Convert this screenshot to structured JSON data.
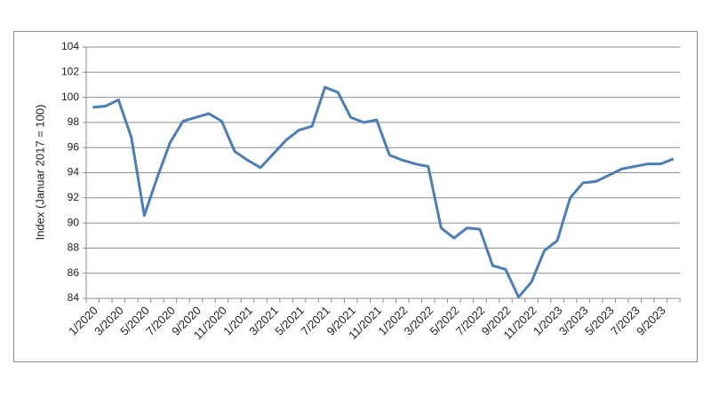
{
  "chart_data": {
    "type": "line",
    "y_label": "Index (Januar 2017 = 100)",
    "categories": [
      "1/2020",
      null,
      "3/2020",
      null,
      "5/2020",
      null,
      "7/2020",
      null,
      "9/2020",
      null,
      "11/2020",
      null,
      "1/2021",
      null,
      "3/2021",
      null,
      "5/2021",
      null,
      "7/2021",
      null,
      "9/2021",
      null,
      "11/2021",
      null,
      "1/2022",
      null,
      "3/2022",
      null,
      "5/2022",
      null,
      "7/2022",
      null,
      "9/2022",
      null,
      "11/2022",
      null,
      "1/2023",
      null,
      "3/2023",
      null,
      "5/2023",
      null,
      "7/2023",
      null,
      "9/2023",
      null
    ],
    "series": [
      {
        "color": "#4a7ebb",
        "values": [
          99.2,
          99.3,
          99.8,
          96.8,
          90.6,
          93.6,
          96.4,
          98.1,
          98.4,
          98.7,
          98.1,
          95.7,
          95.0,
          94.4,
          95.5,
          96.6,
          97.4,
          97.7,
          100.8,
          100.4,
          98.4,
          98.0,
          98.2,
          95.4,
          95.0,
          94.7,
          94.5,
          89.6,
          88.8,
          89.6,
          89.5,
          86.6,
          86.3,
          84.1,
          85.3,
          87.8,
          88.6,
          92.0,
          93.2,
          93.3,
          93.8,
          94.3,
          94.5,
          94.7,
          94.7,
          95.1
        ]
      }
    ],
    "ylim": [
      84,
      104
    ],
    "yticks": [
      84,
      86,
      88,
      90,
      92,
      94,
      96,
      98,
      100,
      102,
      104
    ],
    "grid": true
  }
}
